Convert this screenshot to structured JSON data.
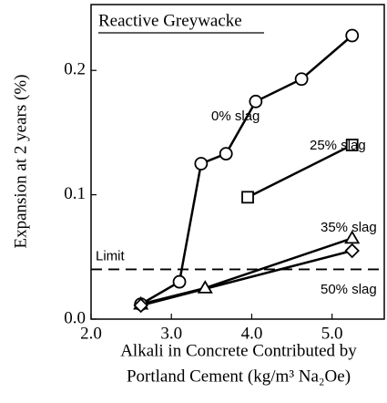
{
  "chart_data": {
    "type": "line",
    "title": "Reactive Greywacke",
    "xlabel": [
      "Alkali in Concrete Contributed by",
      "Portland Cement (kg/m³ Na₂Oe)"
    ],
    "ylabel": "Expansion at 2 years (%)",
    "xlim": [
      2.0,
      5.65
    ],
    "ylim": [
      0,
      0.25
    ],
    "xticks": [
      {
        "value": 2,
        "label": "2.0"
      },
      {
        "value": 3,
        "label": "3.0"
      },
      {
        "value": 4,
        "label": "4.0"
      },
      {
        "value": 5,
        "label": "5.0"
      }
    ],
    "yticks": [
      {
        "value": 0,
        "label": "0.0"
      },
      0.1,
      0.2
    ],
    "limit": {
      "label": "Limit",
      "value": 0.04
    },
    "series": [
      {
        "name": "0% slag",
        "color": "#000000",
        "marker": "circle",
        "x": [
          2.62,
          3.1,
          3.37,
          3.68,
          4.05,
          4.62,
          5.25
        ],
        "values": [
          0.012,
          0.03,
          0.125,
          0.133,
          0.175,
          0.193,
          0.228
        ]
      },
      {
        "name": "25% slag",
        "color": "#000000",
        "marker": "square",
        "x": [
          3.95,
          5.25
        ],
        "values": [
          0.098,
          0.14
        ]
      },
      {
        "name": "35% slag",
        "color": "#000000",
        "marker": "triangle",
        "x": [
          2.62,
          3.42,
          5.25
        ],
        "values": [
          0.012,
          0.025,
          0.065
        ]
      },
      {
        "name": "50% slag",
        "color": "#000000",
        "marker": "diamond",
        "x": [
          2.62,
          5.25
        ],
        "values": [
          0.011,
          0.055
        ]
      }
    ]
  }
}
